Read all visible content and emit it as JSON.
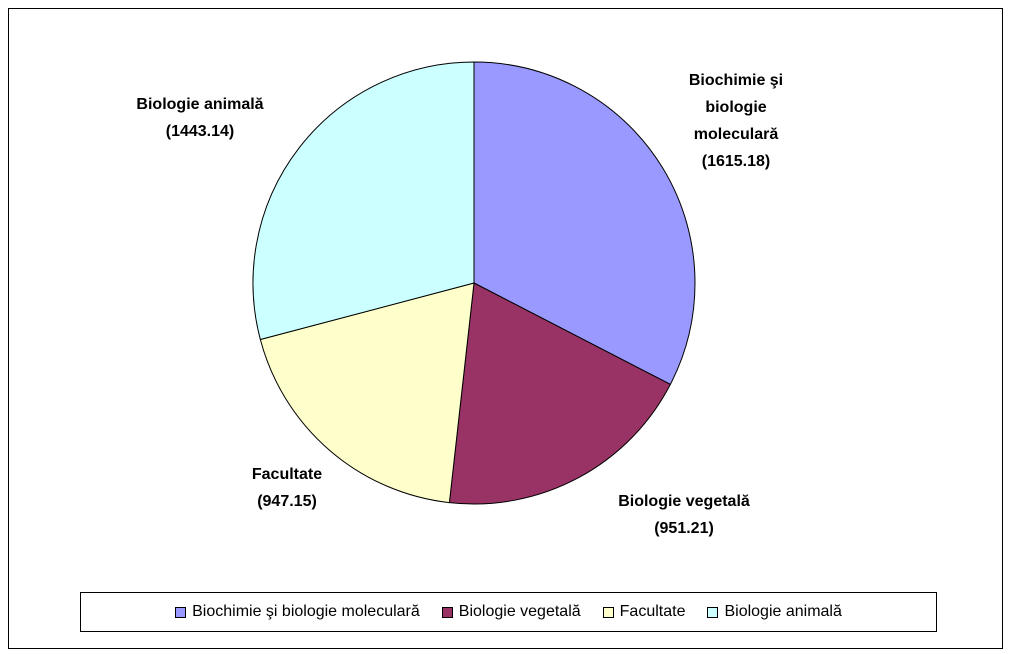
{
  "chart_data": {
    "type": "pie",
    "categories": [
      "Biochimie şi biologie moleculară",
      "Biologie vegetală",
      "Facultate",
      "Biologie animală"
    ],
    "values": [
      1615.18,
      951.21,
      947.15,
      1443.14
    ],
    "value_labels": [
      "(1615.18)",
      "(951.21)",
      "(947.15)",
      "(1443.14)"
    ],
    "colors": [
      "#9999ff",
      "#993366",
      "#ffffcc",
      "#ccffff"
    ],
    "legend": "bottom"
  }
}
